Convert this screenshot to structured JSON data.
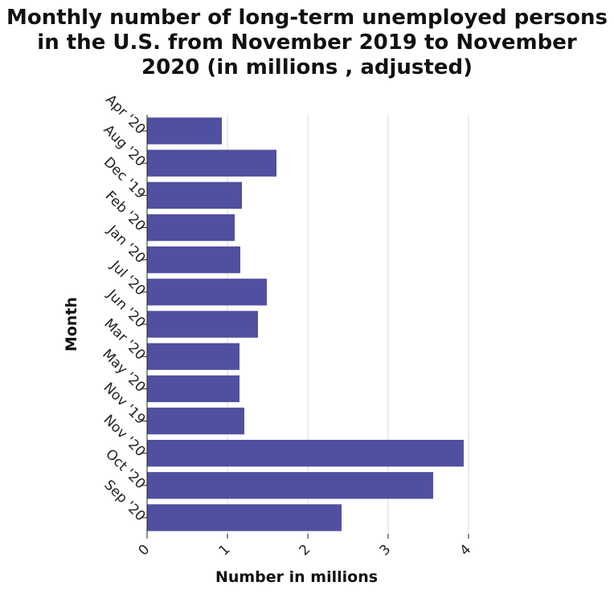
{
  "chart_data": {
    "type": "bar",
    "orientation": "horizontal",
    "title_lines": [
      "Monthly number of long-term unemployed persons",
      "in the U.S. from November 2019 to November",
      "2020 (in millions , adjusted)"
    ],
    "xlabel": "Number in millions",
    "ylabel": "Month",
    "categories": [
      "Apr '20",
      "Aug '20",
      "Dec '19",
      "Feb '20",
      "Jan '20",
      "Jul '20",
      "Jun '20",
      "Mar '20",
      "May '20",
      "Nov '19",
      "Nov '20",
      "Oct '20",
      "Sep '20"
    ],
    "values": [
      0.93,
      1.61,
      1.18,
      1.09,
      1.16,
      1.49,
      1.38,
      1.15,
      1.15,
      1.21,
      3.94,
      3.56,
      2.42
    ],
    "xlim": [
      0,
      4
    ],
    "xticks": [
      "0",
      "1",
      "2",
      "3",
      "4"
    ],
    "grid": true,
    "bar_color": "#5050a0"
  }
}
